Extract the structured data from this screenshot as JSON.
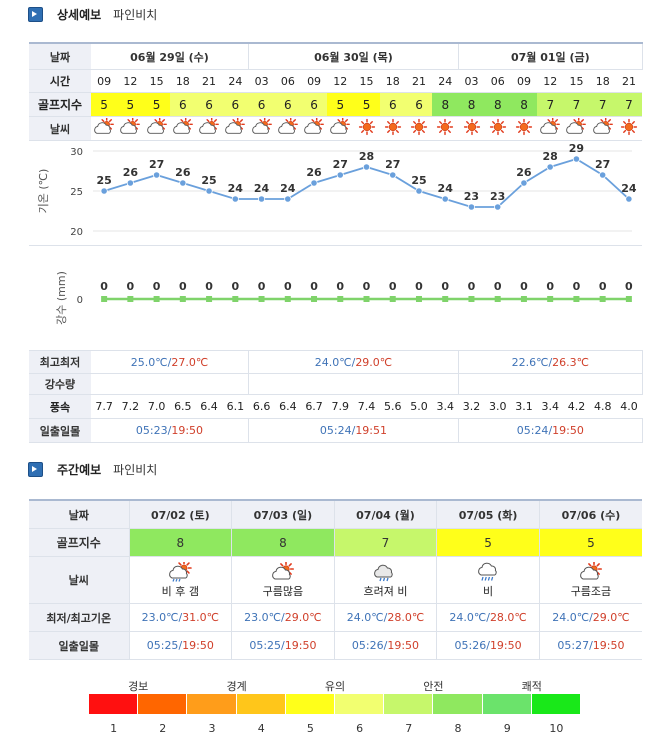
{
  "section1": {
    "title": "상세예보",
    "sub": "파인비치"
  },
  "section2": {
    "title": "주간예보",
    "sub": "파인비치"
  },
  "detail": {
    "labels": {
      "date": "날짜",
      "time": "시간",
      "golf": "골프지수",
      "weather": "날씨",
      "temp_axis": "기온 (℃)",
      "rain_axis": "강수 (mm)",
      "minmax": "최고최저",
      "rain": "강수량",
      "wind": "풍속",
      "sun": "일출일몰"
    },
    "dates": [
      {
        "label": "06월 29일 (수)",
        "span": 6
      },
      {
        "label": "06월 30일 (목)",
        "span": 8
      },
      {
        "label": "07월 01일 (금)",
        "span": 7
      }
    ],
    "times": [
      "09",
      "12",
      "15",
      "18",
      "21",
      "24",
      "03",
      "06",
      "09",
      "12",
      "15",
      "18",
      "21",
      "24",
      "03",
      "06",
      "09",
      "12",
      "15",
      "18",
      "21"
    ],
    "golf": [
      "5",
      "5",
      "5",
      "6",
      "6",
      "6",
      "6",
      "6",
      "6",
      "5",
      "5",
      "6",
      "6",
      "8",
      "8",
      "8",
      "8",
      "7",
      "7",
      "7",
      "7"
    ],
    "weather_icons": [
      "cloud-sun-icon",
      "cloud-sun-icon",
      "cloud-sun-icon",
      "cloud-sun-icon",
      "cloud-sun-icon",
      "cloud-sun-icon",
      "cloud-sun-icon",
      "cloud-sun-icon",
      "cloud-sun-icon",
      "cloud-sun-icon",
      "sun-icon",
      "sun-icon",
      "sun-icon",
      "sun-icon",
      "sun-icon",
      "sun-icon",
      "sun-icon",
      "cloud-sun-icon",
      "cloud-sun-icon",
      "cloud-sun-icon",
      "sun-icon"
    ],
    "temps": [
      "25",
      "26",
      "27",
      "26",
      "25",
      "24",
      "24",
      "24",
      "26",
      "27",
      "28",
      "27",
      "25",
      "24",
      "23",
      "23",
      "26",
      "28",
      "29",
      "27",
      "24"
    ],
    "rain_values": [
      "0",
      "0",
      "0",
      "0",
      "0",
      "0",
      "0",
      "0",
      "0",
      "0",
      "0",
      "0",
      "0",
      "0",
      "0",
      "0",
      "0",
      "0",
      "0",
      "0",
      "0"
    ],
    "minmax": [
      {
        "min": "25.0℃",
        "sep": "/",
        "max": "27.0℃"
      },
      {
        "min": "24.0℃",
        "sep": "/",
        "max": "29.0℃"
      },
      {
        "min": "22.6℃",
        "sep": "/",
        "max": "26.3℃"
      }
    ],
    "wind": [
      "7.7",
      "7.2",
      "7.0",
      "6.5",
      "6.4",
      "6.1",
      "6.6",
      "6.4",
      "6.7",
      "7.9",
      "7.4",
      "5.6",
      "5.0",
      "3.4",
      "3.2",
      "3.0",
      "3.1",
      "3.4",
      "4.2",
      "4.8",
      "4.0"
    ],
    "sun": [
      {
        "rise": "05:23",
        "sep": "/",
        "set": "19:50"
      },
      {
        "rise": "05:24",
        "sep": "/",
        "set": "19:51"
      },
      {
        "rise": "05:24",
        "sep": "/",
        "set": "19:50"
      }
    ]
  },
  "chart_data": [
    {
      "type": "line",
      "title": "",
      "ylabel": "기온 (℃)",
      "ylim": [
        20,
        30
      ],
      "yticks": [
        "30",
        "25",
        "20"
      ],
      "x": [
        "09",
        "12",
        "15",
        "18",
        "21",
        "24",
        "03",
        "06",
        "09",
        "12",
        "15",
        "18",
        "21",
        "24",
        "03",
        "06",
        "09",
        "12",
        "15",
        "18",
        "21"
      ],
      "series": [
        {
          "values": [
            25,
            26,
            27,
            26,
            25,
            24,
            24,
            24,
            26,
            27,
            28,
            27,
            25,
            24,
            23,
            23,
            26,
            28,
            29,
            27,
            24
          ]
        }
      ],
      "color": "#6aa0dc"
    },
    {
      "type": "line",
      "title": "",
      "ylabel": "강수 (mm)",
      "yticks": [
        "0"
      ],
      "x": [
        "09",
        "12",
        "15",
        "18",
        "21",
        "24",
        "03",
        "06",
        "09",
        "12",
        "15",
        "18",
        "21",
        "24",
        "03",
        "06",
        "09",
        "12",
        "15",
        "18",
        "21"
      ],
      "series": [
        {
          "values": [
            0,
            0,
            0,
            0,
            0,
            0,
            0,
            0,
            0,
            0,
            0,
            0,
            0,
            0,
            0,
            0,
            0,
            0,
            0,
            0,
            0
          ]
        }
      ],
      "color": "#7fd36a"
    }
  ],
  "weekly": {
    "labels": {
      "date": "날짜",
      "golf": "골프지수",
      "weather": "날씨",
      "minmax": "최저/최고기온",
      "sun": "일출일몰"
    },
    "days": [
      {
        "date": "07/02 (토)",
        "golf": "8",
        "golf_color": "#8fe85f",
        "icon": "rain-to-clear-icon",
        "desc": "비 후 갬",
        "min": "23.0℃",
        "max": "31.0℃",
        "rise": "05:25",
        "set": "19:50"
      },
      {
        "date": "07/03 (일)",
        "golf": "8",
        "golf_color": "#8fe85f",
        "icon": "cloud-sun-icon",
        "desc": "구름많음",
        "min": "23.0℃",
        "max": "29.0℃",
        "rise": "05:25",
        "set": "19:50"
      },
      {
        "date": "07/04 (월)",
        "golf": "7",
        "golf_color": "#c6f76b",
        "icon": "cloudy-rain-icon",
        "desc": "흐려져 비",
        "min": "24.0℃",
        "max": "28.0℃",
        "rise": "05:26",
        "set": "19:50"
      },
      {
        "date": "07/05 (화)",
        "golf": "5",
        "golf_color": "#ffff1a",
        "icon": "rain-icon",
        "desc": "비",
        "min": "24.0℃",
        "max": "28.0℃",
        "rise": "05:26",
        "set": "19:50"
      },
      {
        "date": "07/06 (수)",
        "golf": "5",
        "golf_color": "#ffff1a",
        "icon": "cloud-sun-icon",
        "desc": "구름조금",
        "min": "24.0℃",
        "max": "29.0℃",
        "rise": "05:27",
        "set": "19:50"
      }
    ],
    "sep": "/"
  },
  "legend": {
    "labels": [
      "경보",
      "경계",
      "유의",
      "안전",
      "쾌적"
    ],
    "numbers": [
      "1",
      "2",
      "3",
      "4",
      "5",
      "6",
      "7",
      "8",
      "9",
      "10"
    ],
    "colors": [
      "#ff1010",
      "#ff6600",
      "#ff9d1a",
      "#ffc61a",
      "#ffff1a",
      "#f2ff70",
      "#c6f76b",
      "#8fe85f",
      "#6be36b",
      "#19e819"
    ]
  },
  "golf_colors": {
    "5": "#ffff1a",
    "6": "#f2ff70",
    "7": "#c6f76b",
    "8": "#8fe85f"
  }
}
